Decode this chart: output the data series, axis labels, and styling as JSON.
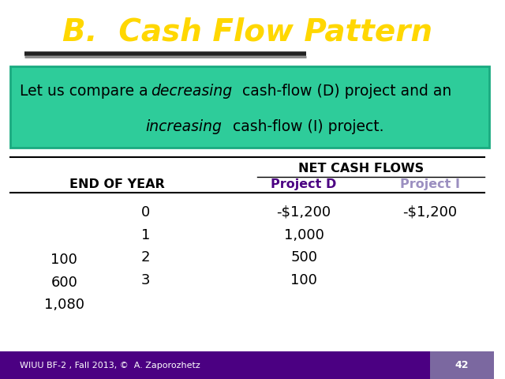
{
  "title": "B.  Cash Flow Pattern",
  "title_color": "#FFD700",
  "title_fontsize": 28,
  "subtitle_box_color": "#2ECC9A",
  "subtitle_box_edge_color": "#1AAA80",
  "table_header_top": "NET CASH FLOWS",
  "col0_header": "END OF YEAR",
  "col1_header": "Project D",
  "col2_header": "Project I",
  "col1_header_color": "#4B0082",
  "col2_header_color": "#9B8FC0",
  "rows": [
    [
      "0",
      "-$1,200",
      "-$1,200"
    ],
    [
      "1",
      "1,000",
      ""
    ],
    [
      "2",
      "500",
      ""
    ],
    [
      "3",
      "100",
      ""
    ]
  ],
  "left_extras": [
    [
      "100",
      0.315
    ],
    [
      "600",
      0.255
    ],
    [
      "1,080",
      0.195
    ]
  ],
  "footer_text": "WIUU BF-2 , Fall 2013, ©  A. Zaporozhetz",
  "footer_page": "42",
  "bg_color": "#FFFFFF",
  "footer_bg": "#4B0082",
  "footer_page_bg": "#7B68A0",
  "footer_text_color": "#FFFFFF"
}
